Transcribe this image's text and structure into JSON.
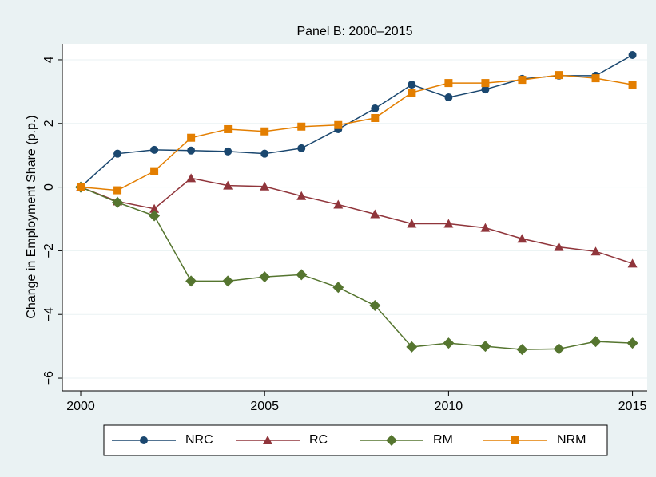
{
  "chart_data": {
    "type": "line",
    "title": "Panel B: 2000–2015",
    "y_label": "Change in Employment Share (p.p.)",
    "x": [
      2000,
      2001,
      2002,
      2003,
      2004,
      2005,
      2006,
      2007,
      2008,
      2009,
      2010,
      2011,
      2012,
      2013,
      2014,
      2015
    ],
    "xlim": [
      1999.5,
      2015.4
    ],
    "xticks": [
      2000,
      2005,
      2010,
      2015
    ],
    "ylim": [
      -6.4,
      4.5
    ],
    "yticks": [
      {
        "value": -6,
        "label": "−6"
      },
      {
        "value": -4,
        "label": "−4"
      },
      {
        "value": -2,
        "label": "−2"
      },
      0,
      2,
      4
    ],
    "grid": true,
    "legend": "bottom",
    "series": [
      {
        "name": "NRC",
        "color": "#1a476f",
        "marker": "circle",
        "values": [
          0,
          1.05,
          1.17,
          1.15,
          1.12,
          1.05,
          1.22,
          1.82,
          2.47,
          3.22,
          2.82,
          3.07,
          3.4,
          3.5,
          3.5,
          4.15
        ]
      },
      {
        "name": "RC",
        "color": "#90353b",
        "marker": "triangle",
        "values": [
          0,
          -0.45,
          -0.68,
          0.28,
          0.05,
          0.02,
          -0.28,
          -0.55,
          -0.85,
          -1.15,
          -1.15,
          -1.28,
          -1.62,
          -1.88,
          -2.02,
          -2.4
        ]
      },
      {
        "name": "RM",
        "color": "#55752f",
        "marker": "diamond",
        "values": [
          0,
          -0.48,
          -0.9,
          -2.95,
          -2.95,
          -2.82,
          -2.75,
          -3.15,
          -3.72,
          -5.02,
          -4.9,
          -5.0,
          -5.1,
          -5.08,
          -4.85,
          -4.9
        ]
      },
      {
        "name": "NRM",
        "color": "#e37e00",
        "marker": "square",
        "values": [
          0,
          -0.1,
          0.5,
          1.55,
          1.82,
          1.75,
          1.9,
          1.95,
          2.17,
          2.97,
          3.27,
          3.27,
          3.37,
          3.52,
          3.42,
          3.22
        ]
      }
    ]
  }
}
